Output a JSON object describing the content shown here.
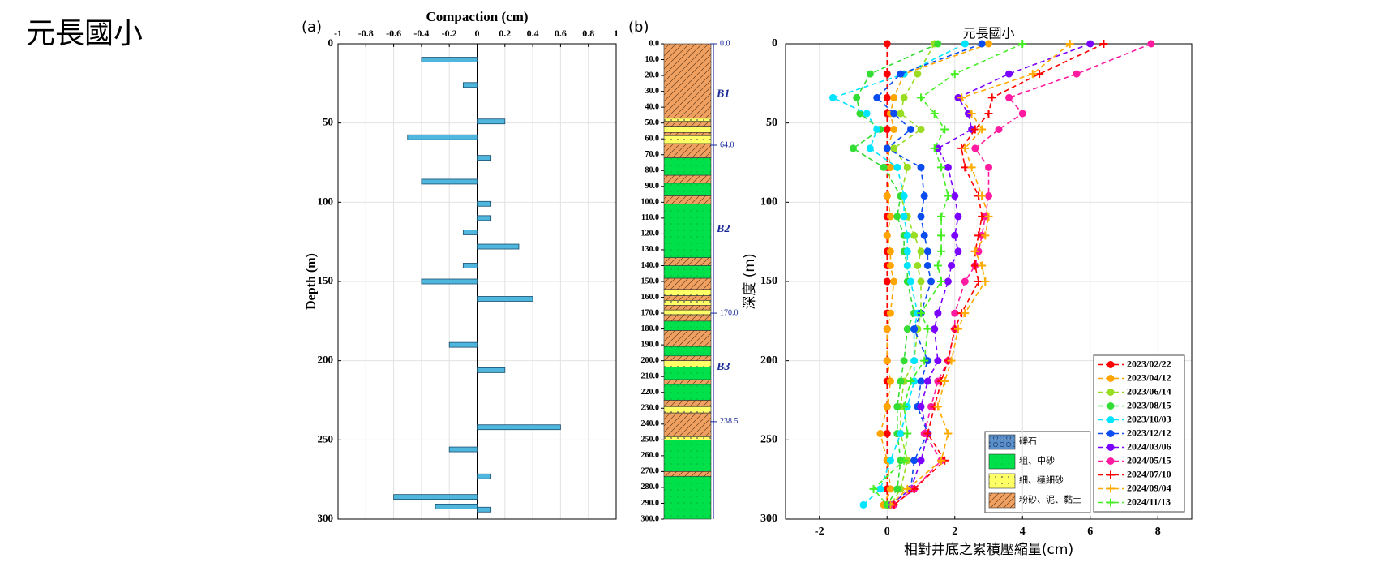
{
  "header": {
    "title": "元長國小"
  },
  "chart_data": [
    {
      "type": "bar",
      "orientation": "horizontal",
      "panel_label": "(a)",
      "xlabel": "Compaction (cm)",
      "ylabel": "Depth (m)",
      "xlim": [
        -1,
        1
      ],
      "xticks": [
        -1,
        -0.8,
        -0.6,
        -0.4,
        -0.2,
        0,
        0.2,
        0.4,
        0.6,
        0.8,
        1
      ],
      "ylim": [
        0,
        300
      ],
      "yticks": [
        0,
        50,
        100,
        150,
        200,
        250,
        300
      ],
      "grid": true,
      "color": "#4fb6dd",
      "y": [
        10,
        26,
        49,
        59,
        72,
        87,
        101,
        110,
        119,
        128,
        140,
        150,
        161,
        190,
        206,
        242,
        256,
        273,
        286,
        292,
        294
      ],
      "values": [
        -0.4,
        -0.1,
        0.2,
        -0.5,
        0.1,
        -0.4,
        0.1,
        0.1,
        -0.1,
        0.3,
        -0.1,
        -0.4,
        0.4,
        -0.2,
        0.2,
        0.6,
        -0.2,
        0.1,
        -0.6,
        -0.3,
        0.1
      ]
    },
    {
      "type": "lithology",
      "panel_label": "(b)",
      "ylim": [
        0,
        300
      ],
      "yticks": [
        {
          "value": 0,
          "label": "0.0"
        },
        {
          "value": 10,
          "label": "10.0"
        },
        {
          "value": 20,
          "label": "20.0"
        },
        {
          "value": 30,
          "label": "30.0"
        },
        {
          "value": 40,
          "label": "40.0"
        },
        {
          "value": 50,
          "label": "50.0"
        },
        {
          "value": 60,
          "label": "60.0"
        },
        {
          "value": 70,
          "label": "70.0"
        },
        {
          "value": 80,
          "label": "80.0"
        },
        {
          "value": 90,
          "label": "90.0"
        },
        {
          "value": 100,
          "label": "100.0"
        },
        {
          "value": 110,
          "label": "110.0"
        },
        {
          "value": 120,
          "label": "120.0"
        },
        {
          "value": 130,
          "label": "130.0"
        },
        {
          "value": 140,
          "label": "140.0"
        },
        {
          "value": 150,
          "label": "150.0"
        },
        {
          "value": 160,
          "label": "160.0"
        },
        {
          "value": 170,
          "label": "170.0"
        },
        {
          "value": 180,
          "label": "180.0"
        },
        {
          "value": 190,
          "label": "190.0"
        },
        {
          "value": 200,
          "label": "200.0"
        },
        {
          "value": 210,
          "label": "210.0"
        },
        {
          "value": 220,
          "label": "220.0"
        },
        {
          "value": 230,
          "label": "230.0"
        },
        {
          "value": 240,
          "label": "240.0"
        },
        {
          "value": 250,
          "label": "250.0"
        },
        {
          "value": 260,
          "label": "260.0"
        },
        {
          "value": 270,
          "label": "270.0"
        },
        {
          "value": 280,
          "label": "280.0"
        },
        {
          "value": 290,
          "label": "290.0"
        },
        {
          "value": 300,
          "label": "300.0"
        }
      ],
      "legend": [
        {
          "name": "礫石",
          "color": "#5b8fc9",
          "pattern": "gravel"
        },
        {
          "name": "粗、中砂",
          "color": "#00e04a",
          "pattern": "sand"
        },
        {
          "name": "細、極細砂",
          "color": "#ffff66",
          "pattern": "dots"
        },
        {
          "name": "粉砂、泥、黏土",
          "color": "#f0a060",
          "pattern": "hatch"
        }
      ],
      "layers": [
        {
          "top": 0,
          "bottom": 47,
          "lith": 3
        },
        {
          "top": 47,
          "bottom": 49,
          "lith": 2
        },
        {
          "top": 49,
          "bottom": 52,
          "lith": 3
        },
        {
          "top": 52,
          "bottom": 56,
          "lith": 2
        },
        {
          "top": 56,
          "bottom": 58,
          "lith": 3
        },
        {
          "top": 58,
          "bottom": 63,
          "lith": 2
        },
        {
          "top": 63,
          "bottom": 72,
          "lith": 3
        },
        {
          "top": 72,
          "bottom": 83,
          "lith": 1
        },
        {
          "top": 83,
          "bottom": 88,
          "lith": 3
        },
        {
          "top": 88,
          "bottom": 96,
          "lith": 1
        },
        {
          "top": 96,
          "bottom": 101,
          "lith": 3
        },
        {
          "top": 101,
          "bottom": 135,
          "lith": 1
        },
        {
          "top": 135,
          "bottom": 140,
          "lith": 3
        },
        {
          "top": 140,
          "bottom": 148,
          "lith": 1
        },
        {
          "top": 148,
          "bottom": 155,
          "lith": 3
        },
        {
          "top": 155,
          "bottom": 159,
          "lith": 2
        },
        {
          "top": 159,
          "bottom": 162,
          "lith": 3
        },
        {
          "top": 162,
          "bottom": 165,
          "lith": 2
        },
        {
          "top": 165,
          "bottom": 168,
          "lith": 3
        },
        {
          "top": 168,
          "bottom": 171,
          "lith": 2
        },
        {
          "top": 171,
          "bottom": 175,
          "lith": 3
        },
        {
          "top": 175,
          "bottom": 181,
          "lith": 1
        },
        {
          "top": 181,
          "bottom": 191,
          "lith": 3
        },
        {
          "top": 191,
          "bottom": 197,
          "lith": 1
        },
        {
          "top": 197,
          "bottom": 200,
          "lith": 3
        },
        {
          "top": 200,
          "bottom": 204,
          "lith": 2
        },
        {
          "top": 204,
          "bottom": 212,
          "lith": 1
        },
        {
          "top": 212,
          "bottom": 215,
          "lith": 3
        },
        {
          "top": 215,
          "bottom": 225,
          "lith": 1
        },
        {
          "top": 225,
          "bottom": 229,
          "lith": 3
        },
        {
          "top": 229,
          "bottom": 233,
          "lith": 2
        },
        {
          "top": 233,
          "bottom": 248,
          "lith": 3
        },
        {
          "top": 248,
          "bottom": 250,
          "lith": 2
        },
        {
          "top": 250,
          "bottom": 270,
          "lith": 1
        },
        {
          "top": 270,
          "bottom": 273,
          "lith": 3
        },
        {
          "top": 273,
          "bottom": 300,
          "lith": 1
        }
      ],
      "boundaries": [
        {
          "value": 0,
          "label": "0.0"
        },
        {
          "value": 64,
          "label": "64.0"
        },
        {
          "value": 170,
          "label": "170.0"
        },
        {
          "value": 238.5,
          "label": "238.5"
        }
      ],
      "units": [
        "B1",
        "B2",
        "B3"
      ],
      "boundary_color": "#1a2a9a"
    },
    {
      "type": "line",
      "title": "元長國小",
      "xlabel": "相對井底之累積壓縮量(cm)",
      "ylabel": "深度 (m)",
      "xlim": [
        -3,
        9
      ],
      "xticks": [
        -2,
        0,
        2,
        4,
        6,
        8
      ],
      "ylim": [
        0,
        300
      ],
      "yticks": [
        0,
        50,
        100,
        150,
        200,
        250,
        300
      ],
      "grid": true,
      "legend": "lower right",
      "line_style": "dashed",
      "y": [
        0,
        19,
        34,
        44,
        54,
        66,
        78,
        96,
        109,
        121,
        131,
        140,
        150,
        170,
        180,
        200,
        213,
        229,
        246,
        263,
        281,
        291
      ],
      "series": [
        {
          "name": "2023/02/22",
          "color": "#ff0000",
          "marker": "circle",
          "values": [
            0,
            0,
            0,
            0,
            0,
            0,
            0,
            0,
            0,
            0,
            0,
            0,
            0,
            0,
            0,
            0,
            0,
            0,
            0,
            0,
            0,
            0
          ]
        },
        {
          "name": "2023/04/12",
          "color": "#ffa500",
          "marker": "circle",
          "values": [
            3.0,
            0.5,
            0.2,
            0.1,
            0.2,
            0.0,
            0.1,
            0.0,
            0.1,
            0.0,
            0.1,
            0.1,
            0.2,
            0.1,
            0.0,
            0.0,
            0.1,
            0.0,
            -0.2,
            0.0,
            0.1,
            -0.1
          ]
        },
        {
          "name": "2023/06/14",
          "color": "#99dd22",
          "marker": "circle",
          "values": [
            1.4,
            0.9,
            0.5,
            0.4,
            1.0,
            0.2,
            0.6,
            0.4,
            0.6,
            0.8,
            1.0,
            0.9,
            1.0,
            1.0,
            0.9,
            0.8,
            0.5,
            0.4,
            0.4,
            0.6,
            0.4,
            0.1
          ]
        },
        {
          "name": "2023/08/15",
          "color": "#33dd33",
          "marker": "circle",
          "values": [
            1.5,
            -0.5,
            -0.9,
            -0.8,
            -0.2,
            -1.0,
            -0.1,
            0.4,
            0.3,
            0.5,
            0.5,
            0.6,
            0.6,
            0.8,
            0.6,
            0.5,
            0.4,
            0.3,
            0.3,
            0.4,
            0.3,
            0.0
          ]
        },
        {
          "name": "2023/10/03",
          "color": "#00e5ff",
          "marker": "circle",
          "values": [
            2.3,
            0.5,
            -1.6,
            -0.6,
            -0.3,
            -0.5,
            0.3,
            0.5,
            0.5,
            0.6,
            0.6,
            0.6,
            0.7,
            0.9,
            0.8,
            0.8,
            0.8,
            0.6,
            0.4,
            0.1,
            -0.2,
            -0.7
          ]
        },
        {
          "name": "2023/12/12",
          "color": "#0a4cf0",
          "marker": "circle",
          "values": [
            2.8,
            0.4,
            -0.3,
            0.2,
            0.7,
            0.0,
            1.0,
            1.1,
            1.0,
            1.1,
            1.2,
            1.2,
            1.3,
            1.0,
            0.8,
            1.2,
            1.0,
            0.9,
            1.2,
            0.8,
            0.7,
            0.1
          ]
        },
        {
          "name": "2024/03/06",
          "color": "#7a00ff",
          "marker": "circle",
          "values": [
            6.0,
            3.6,
            2.1,
            2.4,
            2.5,
            1.5,
            1.8,
            2.0,
            2.1,
            2.0,
            2.1,
            1.9,
            1.8,
            1.5,
            1.4,
            1.5,
            1.2,
            1.0,
            1.2,
            1.0,
            0.7,
            0.1
          ]
        },
        {
          "name": "2024/05/15",
          "color": "#ff1aa0",
          "marker": "circle",
          "values": [
            7.8,
            5.6,
            3.6,
            4.0,
            3.3,
            2.6,
            3.0,
            3.0,
            2.9,
            2.8,
            2.7,
            2.6,
            2.3,
            2.0,
            2.0,
            1.8,
            1.5,
            1.3,
            1.1,
            1.6,
            0.8,
            0.2
          ]
        },
        {
          "name": "2024/07/10",
          "color": "#ff0000",
          "marker": "plus",
          "values": [
            6.4,
            4.5,
            3.1,
            3.0,
            2.6,
            2.2,
            2.3,
            2.7,
            2.8,
            2.7,
            2.6,
            2.6,
            2.7,
            2.2,
            2.0,
            1.8,
            1.6,
            1.4,
            1.2,
            1.7,
            0.8,
            0.2
          ]
        },
        {
          "name": "2024/09/04",
          "color": "#ffaa00",
          "marker": "plus",
          "values": [
            5.4,
            4.3,
            2.2,
            2.5,
            2.8,
            2.3,
            2.5,
            2.8,
            3.0,
            2.9,
            2.6,
            2.8,
            2.9,
            2.3,
            2.1,
            1.9,
            1.7,
            1.5,
            1.8,
            1.6,
            0.6,
            0.1
          ]
        },
        {
          "name": "2024/11/13",
          "color": "#44ee22",
          "marker": "plus",
          "values": [
            4.0,
            2.0,
            1.0,
            1.4,
            1.7,
            1.4,
            1.6,
            1.8,
            1.6,
            1.6,
            1.6,
            1.5,
            1.6,
            1.0,
            1.2,
            1.1,
            0.7,
            0.5,
            0.6,
            0.5,
            -0.4,
            0.0
          ]
        }
      ]
    }
  ]
}
